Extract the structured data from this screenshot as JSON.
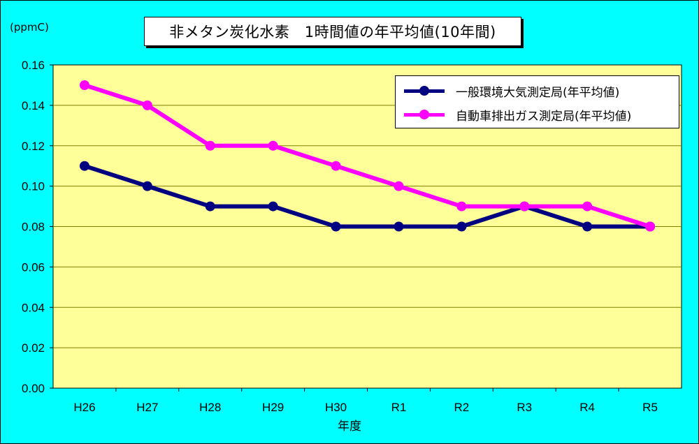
{
  "colors": {
    "background": "#00FFFF",
    "plot_area": "#FFFF99",
    "grid": "#808000",
    "series_general": "#000080",
    "series_roadside": "#FF00FF"
  },
  "chart_data": {
    "type": "line",
    "title": "非メタン炭化水素　1時間値の年平均値(10年間)",
    "unit_label": "(ppmC)",
    "xlabel": "年度",
    "ylabel": "",
    "ylim": [
      0,
      0.16
    ],
    "y_ticks": [
      "0.00",
      "0.02",
      "0.04",
      "0.06",
      "0.08",
      "0.10",
      "0.12",
      "0.14",
      "0.16"
    ],
    "categories": [
      "H26",
      "H27",
      "H28",
      "H29",
      "H30",
      "R1",
      "R2",
      "R3",
      "R4",
      "R5"
    ],
    "series": [
      {
        "name": "一般環境大気測定局(年平均値)",
        "color": "#000080",
        "values": [
          0.11,
          0.1,
          0.09,
          0.09,
          0.08,
          0.08,
          0.08,
          0.09,
          0.08,
          0.08
        ]
      },
      {
        "name": "自動車排出ガス測定局(年平均値)",
        "color": "#FF00FF",
        "values": [
          0.15,
          0.14,
          0.12,
          0.12,
          0.11,
          0.1,
          0.09,
          0.09,
          0.09,
          0.08
        ]
      }
    ],
    "grid": true,
    "legend_position": "top-right"
  }
}
